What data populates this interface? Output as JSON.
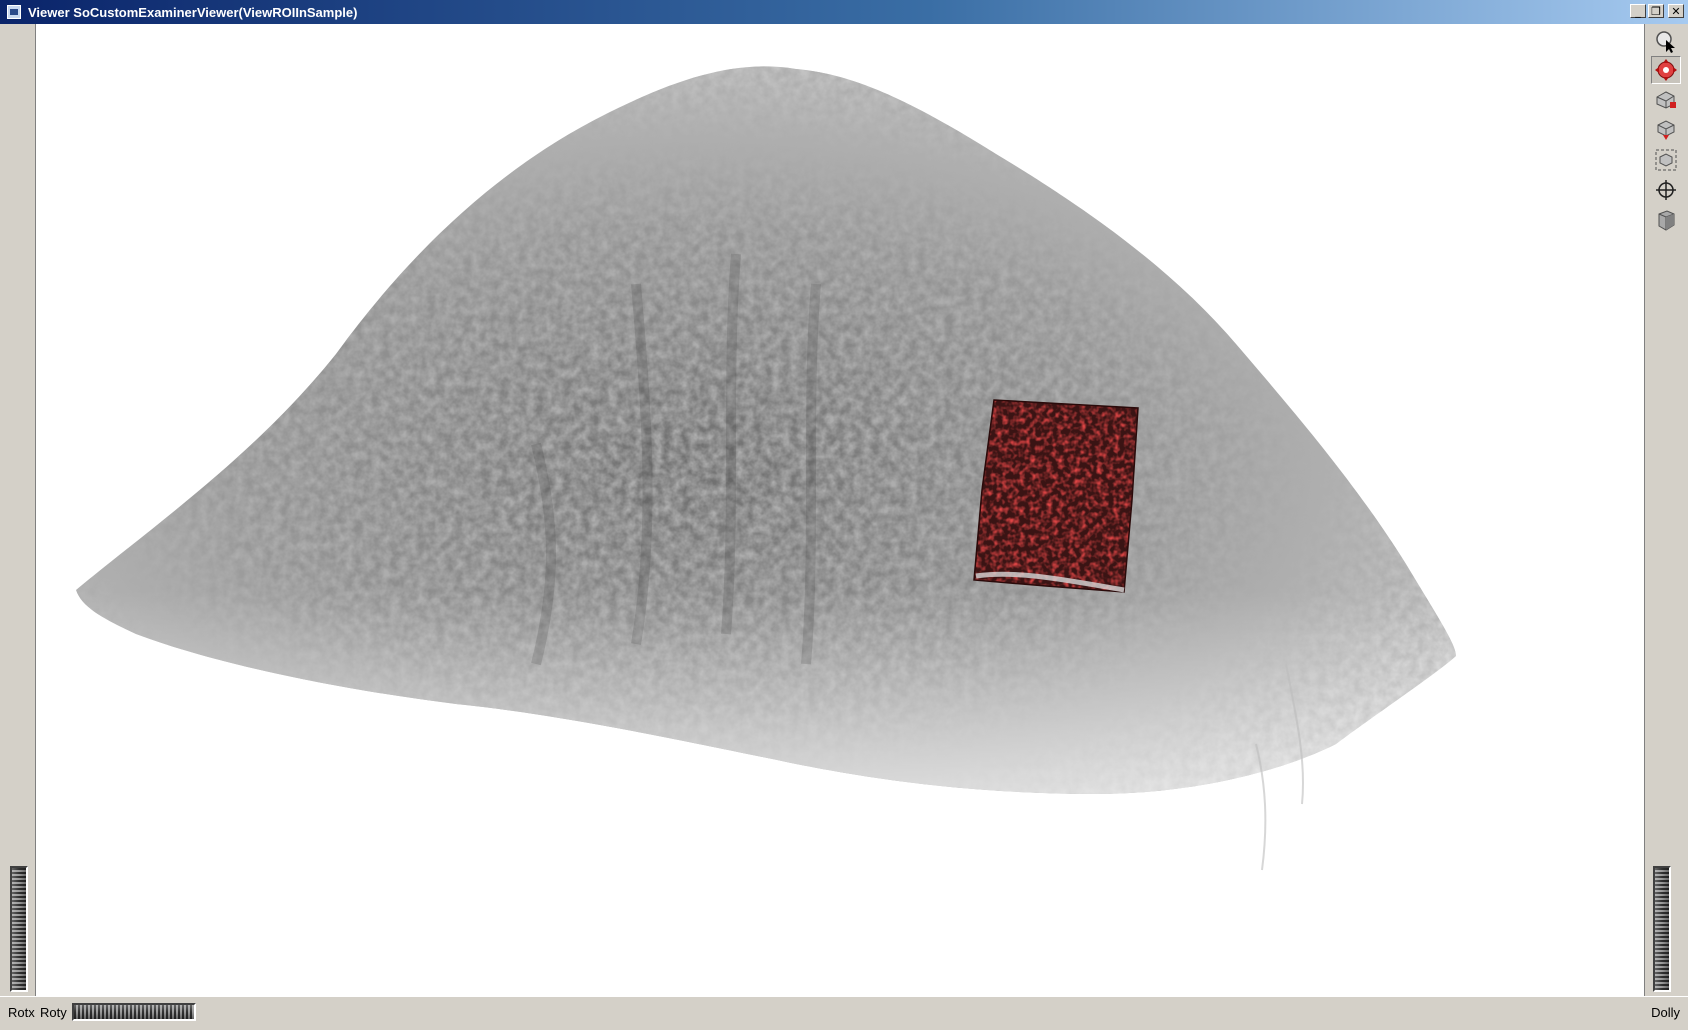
{
  "window": {
    "title": "Viewer SoCustomExaminerViewer(ViewROIInSample)",
    "controls": [
      "minimize-icon",
      "restore-icon",
      "close-icon"
    ],
    "control_glyphs": {
      "minimize": "_",
      "restore": "❐",
      "close": "✕"
    }
  },
  "toolbar": {
    "tools": [
      {
        "name": "select-pointer-icon",
        "active": false
      },
      {
        "name": "view-rotate-icon",
        "active": true
      },
      {
        "name": "home-view-icon",
        "active": false
      },
      {
        "name": "set-home-icon",
        "active": false
      },
      {
        "name": "view-all-icon",
        "active": false
      },
      {
        "name": "seek-icon",
        "active": false
      },
      {
        "name": "perspective-camera-icon",
        "active": false
      }
    ]
  },
  "thumbwheels": {
    "rotx_label": "Rotx",
    "roty_label": "Roty",
    "dolly_label": "Dolly"
  },
  "scene": {
    "background": "#ffffff",
    "volume_color": "#6a6a6a",
    "roi_color": "#3a1414",
    "roi_accent": "#b01818"
  }
}
